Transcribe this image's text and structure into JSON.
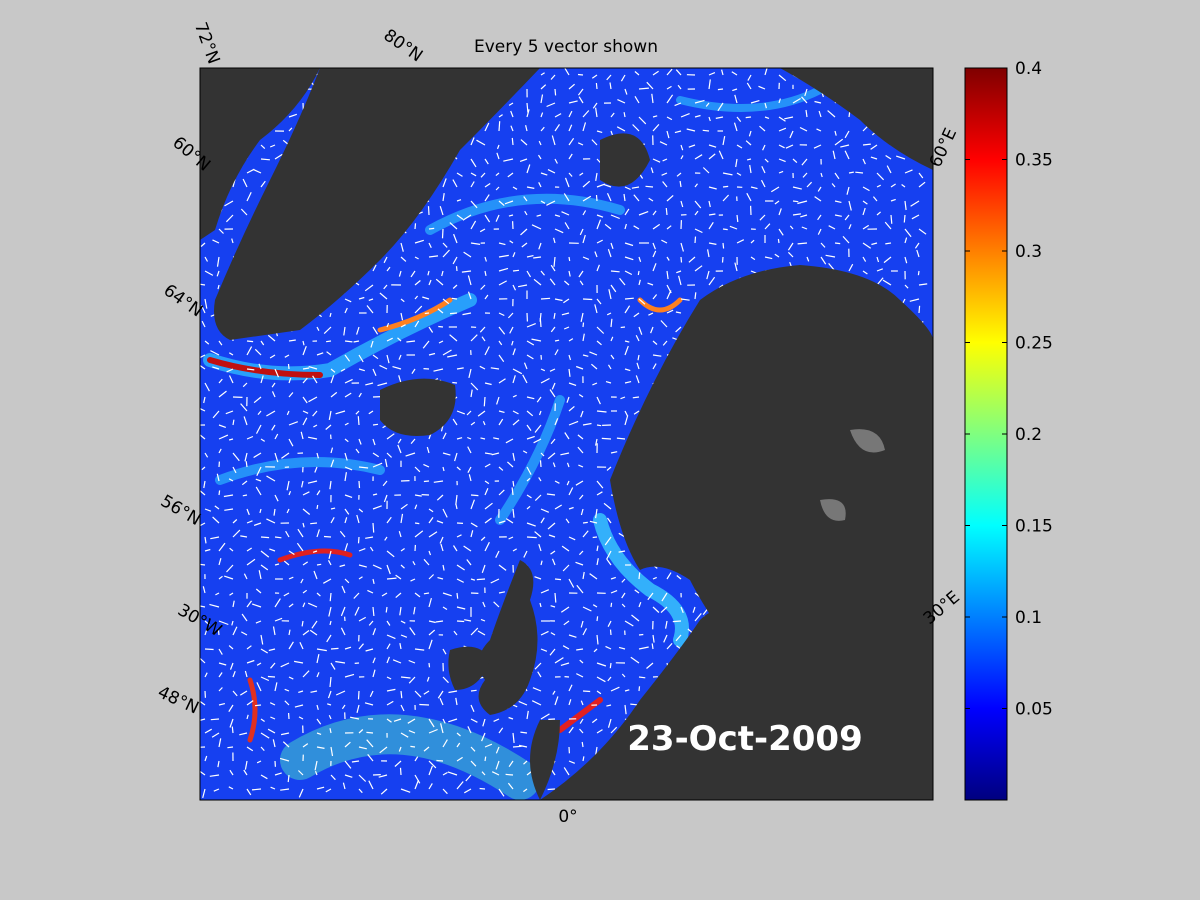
{
  "map": {
    "title": "Every 5 vector shown",
    "date_label": "23-Oct-2009",
    "graticule_labels": [
      "72°N",
      "80°N",
      "60°N",
      "64°N",
      "56°N",
      "30°W",
      "48°N",
      "0°",
      "30°E",
      "60°E"
    ]
  },
  "colorbar": {
    "ylim": [
      0,
      0.4
    ],
    "yticks": [
      0.05,
      0.1,
      0.15,
      0.2,
      0.25,
      0.3,
      0.35,
      0.4
    ]
  }
}
